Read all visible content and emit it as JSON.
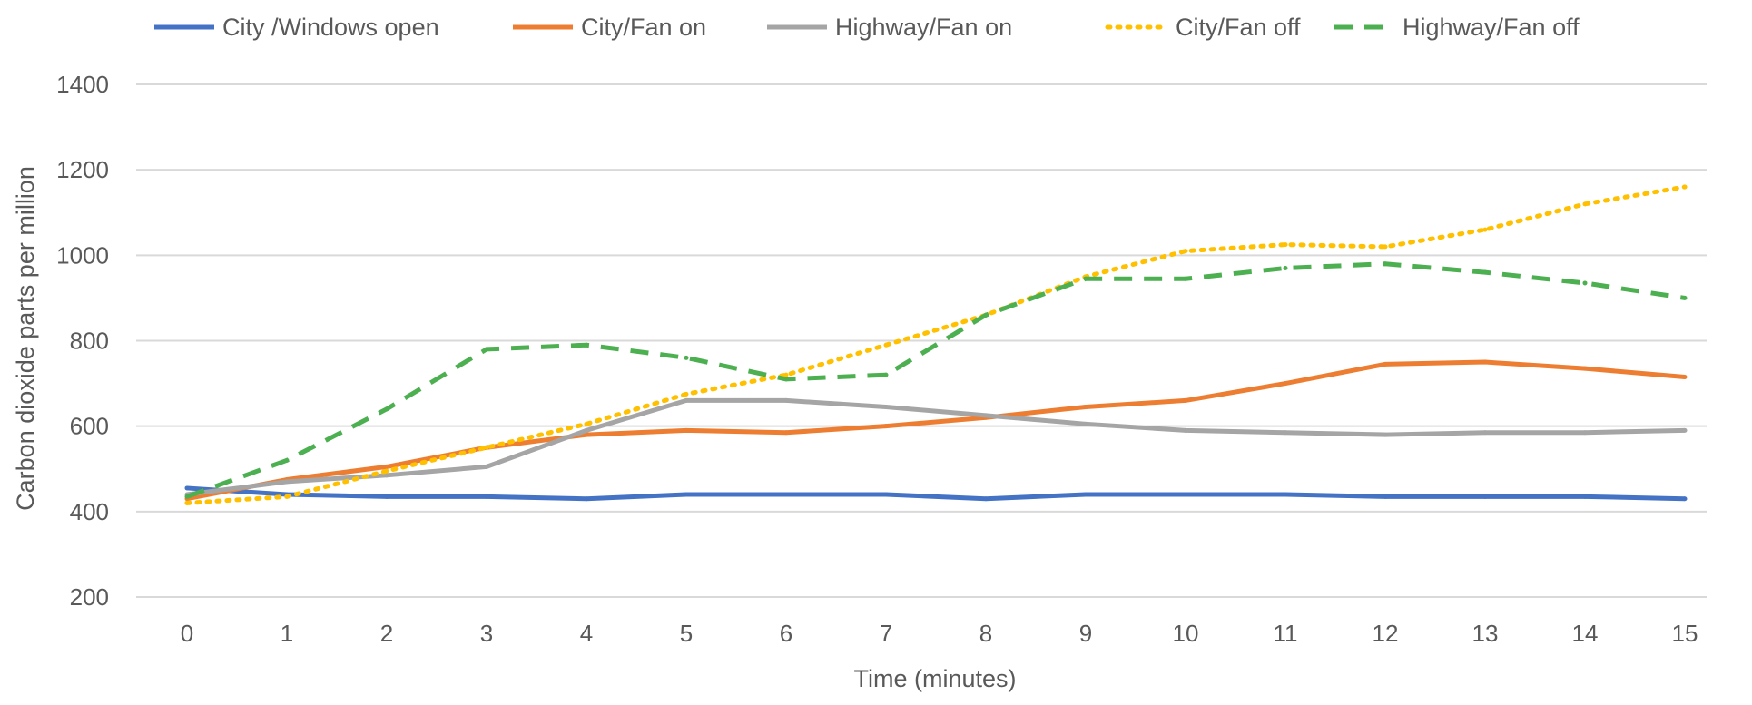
{
  "chart_data": {
    "type": "line",
    "xlabel": "Time (minutes)",
    "ylabel": "Carbon dioxide parts per million",
    "ylim": [
      200,
      1400
    ],
    "yticks": [
      200,
      400,
      600,
      800,
      1000,
      1200,
      1400
    ],
    "grid": true,
    "legend_position": "top",
    "x": [
      0,
      1,
      2,
      3,
      4,
      5,
      6,
      7,
      8,
      9,
      10,
      11,
      12,
      13,
      14,
      15
    ],
    "series": [
      {
        "name": "City /Windows open",
        "color": "#4472c4",
        "dash": "solid",
        "values": [
          455,
          440,
          435,
          435,
          430,
          440,
          440,
          440,
          430,
          440,
          440,
          440,
          435,
          435,
          435,
          430
        ]
      },
      {
        "name": "City/Fan on",
        "color": "#ed7d31",
        "dash": "solid",
        "values": [
          430,
          475,
          505,
          550,
          580,
          590,
          585,
          600,
          620,
          645,
          660,
          700,
          745,
          750,
          735,
          715
        ]
      },
      {
        "name": "Highway/Fan on",
        "color": "#a5a5a5",
        "dash": "solid",
        "values": [
          440,
          470,
          485,
          505,
          590,
          660,
          660,
          645,
          625,
          605,
          590,
          585,
          580,
          585,
          585,
          590
        ]
      },
      {
        "name": "City/Fan off",
        "color": "#ffc000",
        "dash": "dot",
        "values": [
          420,
          435,
          495,
          550,
          605,
          675,
          720,
          790,
          860,
          950,
          1010,
          1025,
          1020,
          1060,
          1120,
          1160
        ]
      },
      {
        "name": "Highway/Fan off",
        "color": "#4caf50",
        "dash": "dash",
        "values": [
          435,
          520,
          640,
          780,
          790,
          760,
          710,
          720,
          860,
          945,
          945,
          970,
          980,
          960,
          935,
          900
        ]
      }
    ]
  }
}
